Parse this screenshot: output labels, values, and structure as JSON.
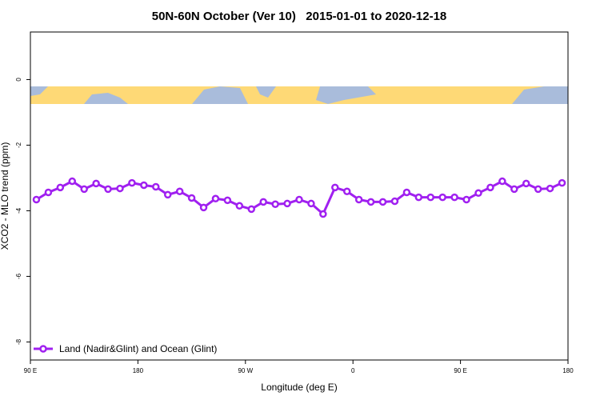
{
  "chart_data": {
    "type": "line",
    "title": "50N-60N October (Ver 10)   2015-01-01 to 2020-12-18",
    "x_label": "Longitude (deg E)",
    "y_label": "XCO2 - MLO trend (ppm)",
    "xlim": [
      90,
      540
    ],
    "xticks": [
      {
        "value": 90,
        "label": "90 E"
      },
      180,
      {
        "value": 270,
        "label": "90 W"
      },
      {
        "value": 360,
        "label": "0"
      },
      {
        "value": 450,
        "label": "90 E"
      },
      {
        "value": 540,
        "label": "180"
      }
    ],
    "ylim": [
      -8.55,
      1.45
    ],
    "yticks": [
      0,
      -2,
      -4,
      -6,
      -8
    ],
    "legend": "bottom-left",
    "x": [
      95,
      105,
      115,
      125,
      135,
      145,
      155,
      165,
      175,
      185,
      195,
      205,
      215,
      225,
      235,
      245,
      255,
      265,
      275,
      285,
      295,
      305,
      315,
      325,
      335,
      345,
      355,
      365,
      375,
      385,
      395,
      405,
      415,
      425,
      435,
      445,
      455,
      465,
      475,
      485,
      495,
      505,
      515,
      525,
      535
    ],
    "series": [
      {
        "name": "Land (Nadir&Glint) and Ocean (Glint)",
        "color": "#a020f0",
        "values": [
          -3.66,
          -3.44,
          -3.29,
          -3.1,
          -3.34,
          -3.17,
          -3.34,
          -3.32,
          -3.15,
          -3.22,
          -3.27,
          -3.51,
          -3.41,
          -3.61,
          -3.9,
          -3.63,
          -3.68,
          -3.85,
          -3.95,
          -3.73,
          -3.8,
          -3.78,
          -3.66,
          -3.78,
          -4.1,
          -3.29,
          -3.41,
          -3.66,
          -3.73,
          -3.73,
          -3.71,
          -3.44,
          -3.59,
          -3.59,
          -3.59,
          -3.59,
          -3.66,
          -3.46,
          -3.29,
          -3.1,
          -3.34,
          -3.17,
          -3.34,
          -3.32,
          -3.15
        ]
      }
    ]
  }
}
